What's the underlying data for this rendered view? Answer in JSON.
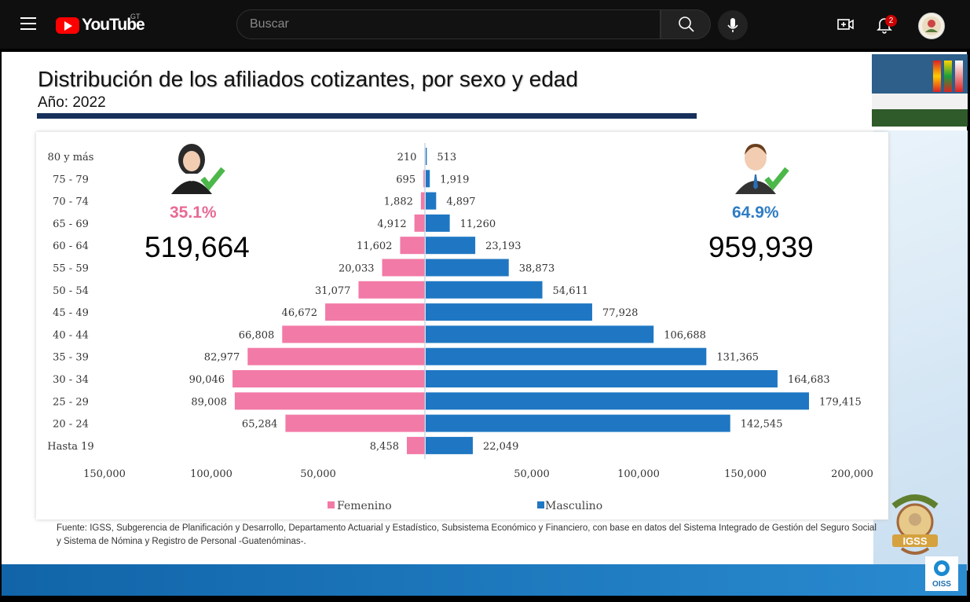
{
  "header": {
    "brand": "YouTube",
    "country_code": "GT",
    "search_placeholder": "Buscar",
    "notification_count": "2"
  },
  "slide": {
    "title": "Distribución de los afiliados cotizantes, por sexo y edad",
    "subtitle": "Año: 2022",
    "female_pct": "35.1%",
    "female_total": "519,664",
    "male_pct": "64.9%",
    "male_total": "959,939",
    "source": "Fuente: IGSS, Subgerencia de Planificación y Desarrollo, Departamento Actuarial y Estadístico, Subsistema Económico y Financiero, con base en datos del Sistema Integrado de Gestión del Seguro Social y Sistema de Nómina y Registro de Personal -Guatenóminas-.",
    "logo_text": "IGSS",
    "oiss_text": "OISS"
  },
  "chart_data": {
    "type": "bar",
    "orientation": "horizontal-population-pyramid",
    "categories": [
      "80 y más",
      "75 - 79",
      "70 - 74",
      "65 - 69",
      "60 - 64",
      "55 - 59",
      "50 - 54",
      "45 - 49",
      "40 - 44",
      "35 - 39",
      "30 - 34",
      "25 - 29",
      "20 - 24",
      "Hasta 19"
    ],
    "series": [
      {
        "name": "Femenino",
        "color": "#f27aa6",
        "values": [
          210,
          695,
          1882,
          4912,
          11602,
          20033,
          31077,
          46672,
          66808,
          82977,
          90046,
          89008,
          65284,
          8458
        ],
        "labels": [
          "210",
          "695",
          "1,882",
          "4,912",
          "11,602",
          "20,033",
          "31,077",
          "46,672",
          "66,808",
          "82,977",
          "90,046",
          "89,008",
          "65,284",
          "8,458"
        ]
      },
      {
        "name": "Masculino",
        "color": "#1f77c3",
        "values": [
          513,
          1919,
          4897,
          11260,
          23193,
          38873,
          54611,
          77928,
          106688,
          131365,
          164683,
          179415,
          142545,
          22049
        ],
        "labels": [
          "513",
          "1,919",
          "4,897",
          "11,260",
          "23,193",
          "38,873",
          "54,611",
          "77,928",
          "106,688",
          "131,365",
          "164,683",
          "179,415",
          "142,545",
          "22,049"
        ]
      }
    ],
    "x_ticks_left": [
      "150,000",
      "100,000",
      "50,000"
    ],
    "x_ticks_right": [
      "50,000",
      "100,000",
      "150,000",
      "200,000"
    ],
    "x_tick_values": [
      50000,
      100000,
      150000,
      200000
    ],
    "legend_placement": "bottom"
  }
}
